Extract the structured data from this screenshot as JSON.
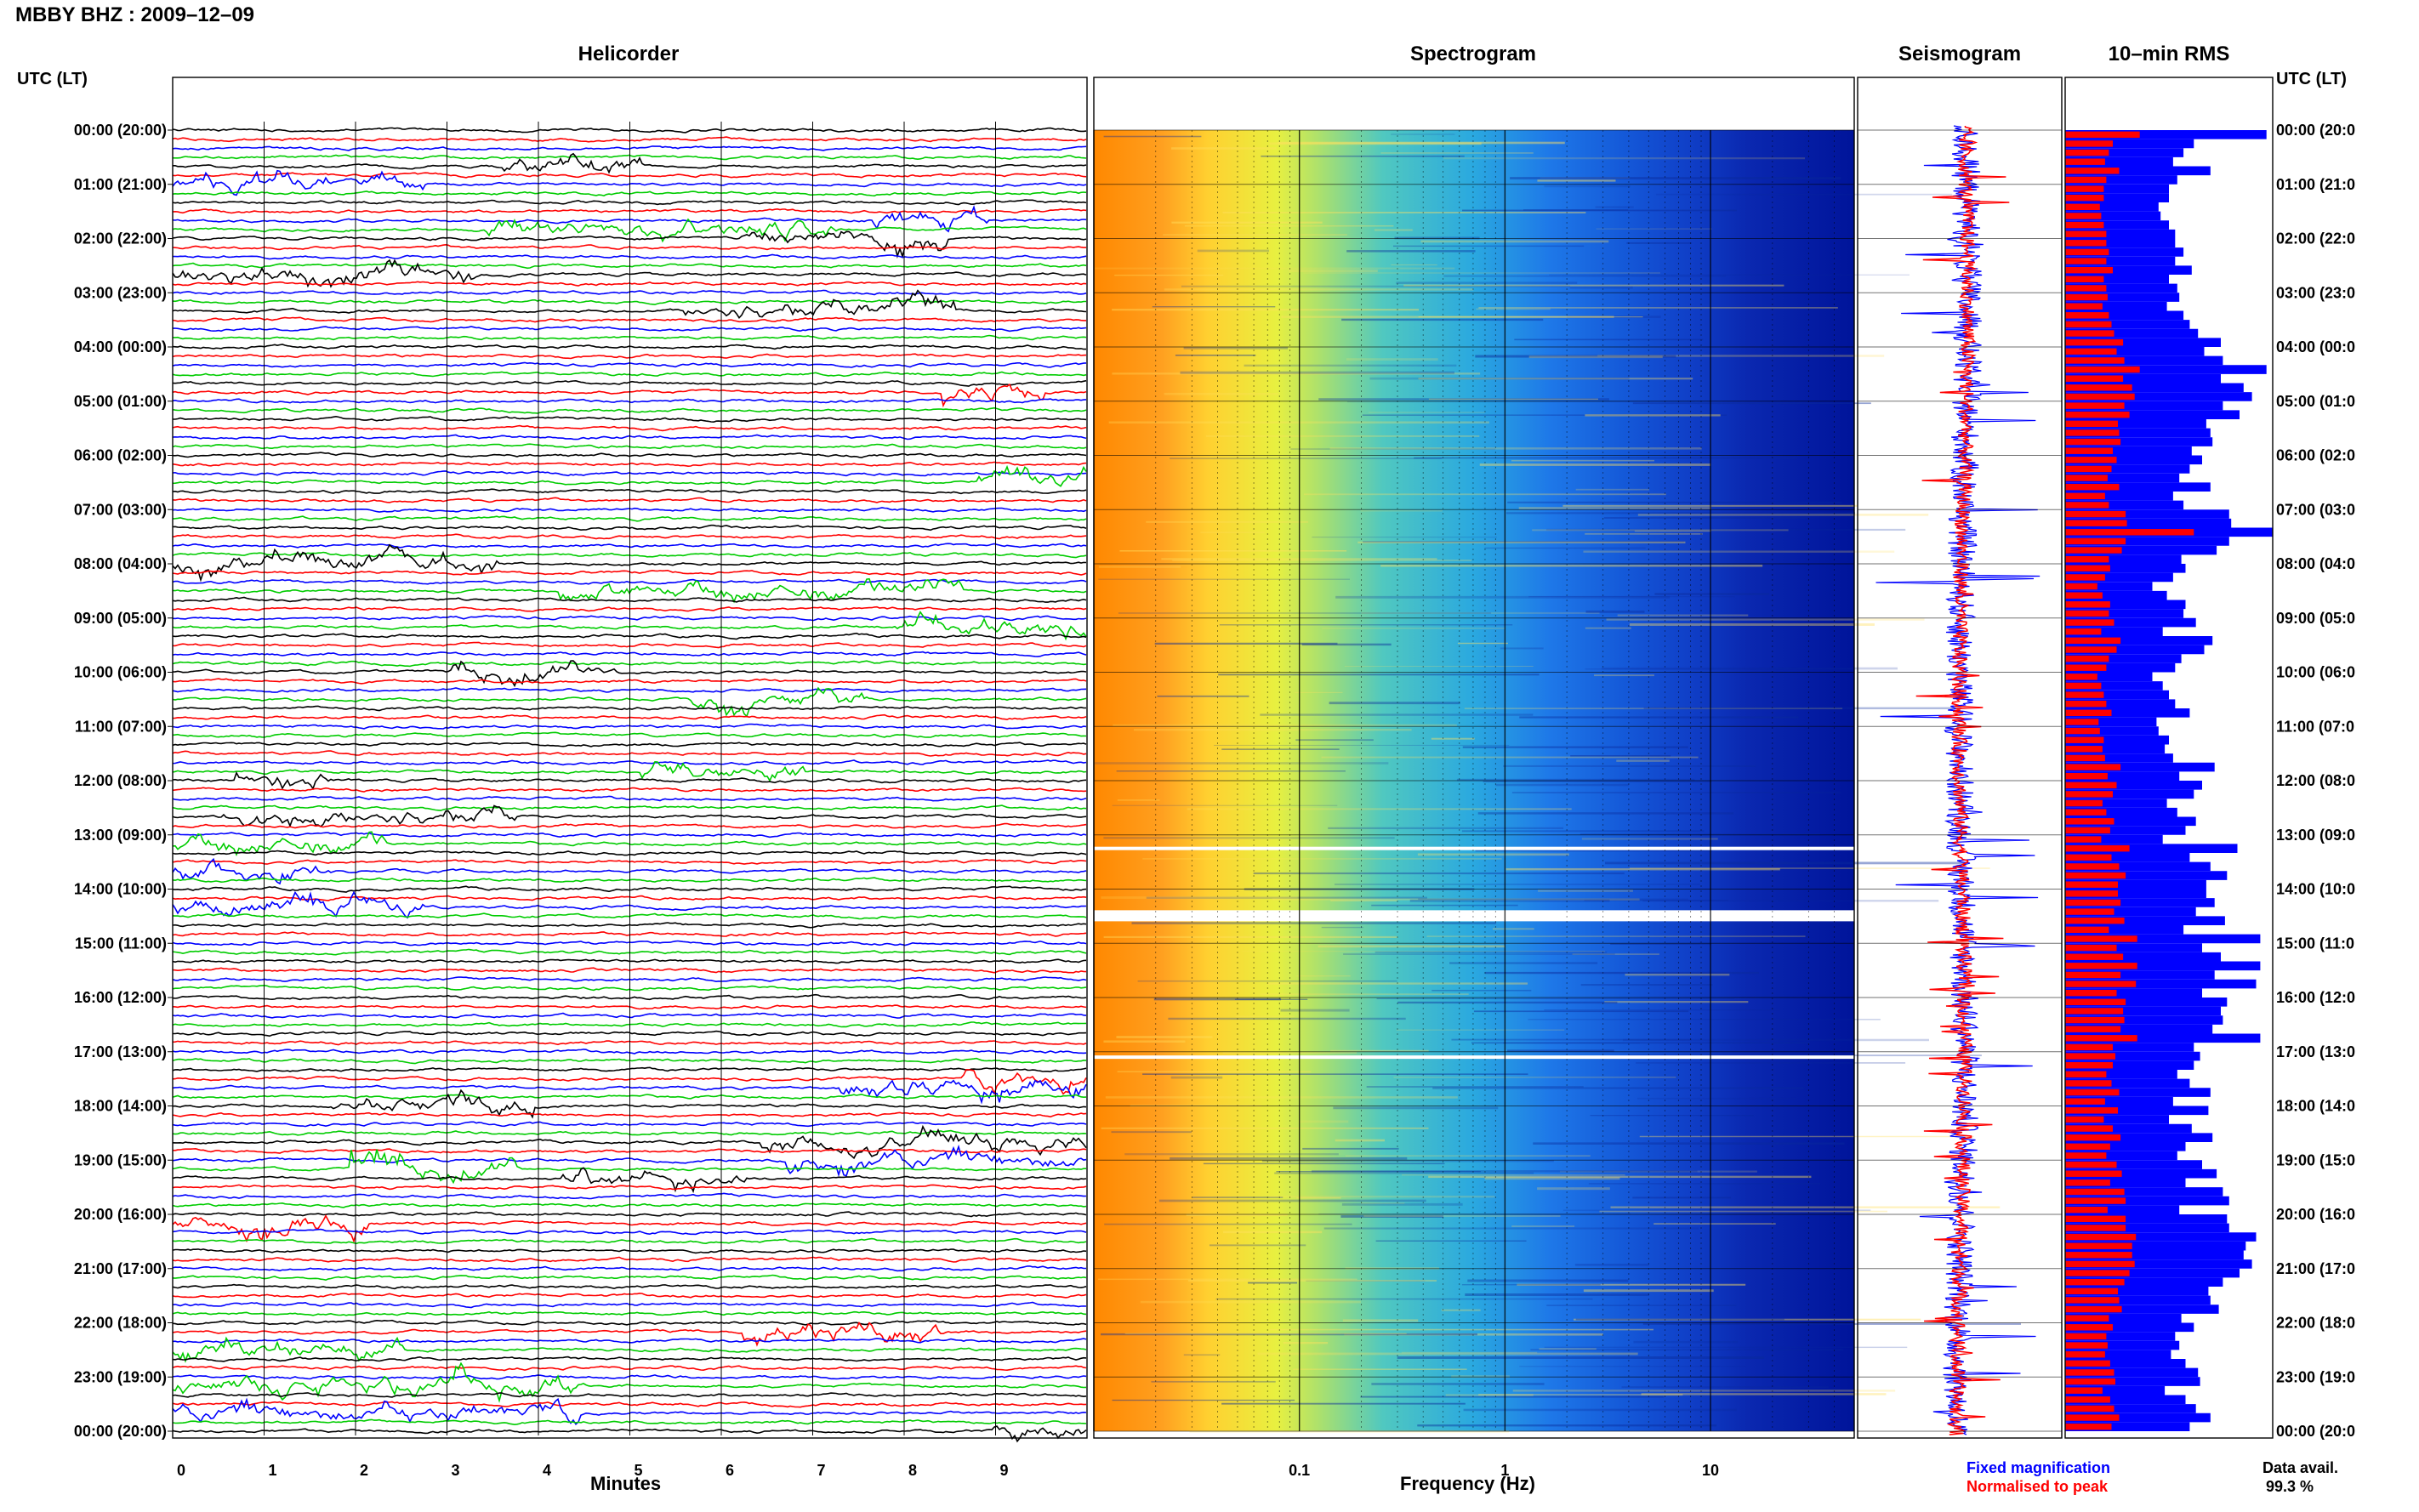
{
  "header": {
    "title": "MBBY BHZ : 2009–12–09",
    "utc_label_left": "UTC (LT)",
    "utc_label_right": "UTC (LT)"
  },
  "panels": {
    "helicorder": "Helicorder",
    "spectrogram": "Spectrogram",
    "seismogram": "Seismogram",
    "rms": "10–min RMS"
  },
  "axes": {
    "minutes_label": "Minutes",
    "frequency_label": "Frequency (Hz)",
    "minute_ticks": [
      "0",
      "1",
      "2",
      "3",
      "4",
      "5",
      "6",
      "7",
      "8",
      "9"
    ],
    "frequency_ticks": [
      "0.1",
      "1",
      "10"
    ]
  },
  "legend": {
    "fixed": "Fixed magnification",
    "normalised": "Normalised to peak",
    "data_avail_label": "Data avail.",
    "data_avail_value": "99.3 %"
  },
  "colors": {
    "trace_cycle": [
      "#000000",
      "#ff0000",
      "#0000ff",
      "#00cc00"
    ],
    "fixed": "#0000ff",
    "normalised": "#ff0000",
    "spectrogram_low": "#ff8c00",
    "spectrogram_mid": "#32c8c8",
    "spectrogram_high": "#0000a0"
  },
  "chart_data": {
    "type": "heatmap",
    "time_labels": [
      "00:00 (20:00)",
      "01:00 (21:00)",
      "02:00 (22:00)",
      "03:00 (23:00)",
      "04:00 (00:00)",
      "05:00 (01:00)",
      "06:00 (02:00)",
      "07:00 (03:00)",
      "08:00 (04:00)",
      "09:00 (05:00)",
      "10:00 (06:00)",
      "11:00 (07:00)",
      "12:00 (08:00)",
      "13:00 (09:00)",
      "14:00 (10:00)",
      "15:00 (11:00)",
      "16:00 (12:00)",
      "17:00 (13:00)",
      "18:00 (14:00)",
      "19:00 (15:00)",
      "20:00 (16:00)",
      "21:00 (17:00)",
      "22:00 (18:00)",
      "23:00 (19:00)",
      "00:00 (20:00)"
    ],
    "time_labels_right": [
      "00:00 (20:0",
      "01:00 (21:0",
      "02:00 (22:0",
      "03:00 (23:0",
      "04:00 (00:0",
      "05:00 (01:0",
      "06:00 (02:0",
      "07:00 (03:0",
      "08:00 (04:0",
      "09:00 (05:0",
      "10:00 (06:0",
      "11:00 (07:0",
      "12:00 (08:0",
      "13:00 (09:0",
      "14:00 (10:0",
      "15:00 (11:0",
      "16:00 (12:0",
      "17:00 (13:0",
      "18:00 (14:0",
      "19:00 (15:0",
      "20:00 (16:0",
      "21:00 (17:0",
      "22:00 (18:0",
      "23:00 (19:0",
      "00:00 (20:0"
    ],
    "helicorder_lines_per_hour": 6,
    "helicorder_minutes_per_line": 10,
    "frequency_range_hz": [
      0.01,
      50
    ],
    "rms_fixed": [
      0.97,
      0.62,
      0.57,
      0.52,
      0.7,
      0.54,
      0.5,
      0.5,
      0.45,
      0.46,
      0.5,
      0.53,
      0.53,
      0.57,
      0.53,
      0.61,
      0.5,
      0.54,
      0.55,
      0.49,
      0.57,
      0.6,
      0.64,
      0.75,
      0.67,
      0.76,
      0.97,
      0.75,
      0.86,
      0.9,
      0.76,
      0.84,
      0.68,
      0.7,
      0.71,
      0.61,
      0.66,
      0.6,
      0.55,
      0.7,
      0.52,
      0.57,
      0.79,
      0.8,
      1.0,
      0.79,
      0.73,
      0.56,
      0.58,
      0.52,
      0.42,
      0.49,
      0.58,
      0.57,
      0.63,
      0.47,
      0.71,
      0.67,
      0.56,
      0.53,
      0.42,
      0.47,
      0.5,
      0.53,
      0.6,
      0.44,
      0.45,
      0.5,
      0.48,
      0.52,
      0.72,
      0.55,
      0.66,
      0.62,
      0.49,
      0.54,
      0.63,
      0.58,
      0.47,
      0.83,
      0.6,
      0.7,
      0.78,
      0.68,
      0.68,
      0.72,
      0.63,
      0.77,
      0.57,
      0.94,
      0.66,
      0.75,
      0.94,
      0.72,
      0.92,
      0.66,
      0.78,
      0.75,
      0.76,
      0.71,
      0.94,
      0.62,
      0.65,
      0.62,
      0.54,
      0.6,
      0.7,
      0.52,
      0.69,
      0.5,
      0.61,
      0.71,
      0.58,
      0.54,
      0.66,
      0.73,
      0.58,
      0.76,
      0.79,
      0.55,
      0.78,
      0.79,
      0.92,
      0.87,
      0.86,
      0.9,
      0.84,
      0.76,
      0.69,
      0.7,
      0.74,
      0.56,
      0.62,
      0.53,
      0.55,
      0.51,
      0.58,
      0.64,
      0.65,
      0.48,
      0.58,
      0.63,
      0.7,
      0.6
    ],
    "rms_normalised": [
      0.58,
      0.37,
      0.34,
      0.31,
      0.42,
      0.32,
      0.3,
      0.3,
      0.27,
      0.28,
      0.3,
      0.32,
      0.32,
      0.34,
      0.32,
      0.37,
      0.3,
      0.32,
      0.33,
      0.29,
      0.34,
      0.36,
      0.38,
      0.45,
      0.4,
      0.46,
      0.58,
      0.45,
      0.52,
      0.54,
      0.46,
      0.5,
      0.41,
      0.42,
      0.43,
      0.37,
      0.4,
      0.36,
      0.33,
      0.42,
      0.31,
      0.34,
      0.47,
      0.48,
      1.0,
      0.47,
      0.44,
      0.34,
      0.35,
      0.31,
      0.25,
      0.29,
      0.35,
      0.34,
      0.38,
      0.28,
      0.43,
      0.4,
      0.34,
      0.32,
      0.25,
      0.28,
      0.3,
      0.32,
      0.36,
      0.26,
      0.27,
      0.3,
      0.29,
      0.31,
      0.43,
      0.33,
      0.4,
      0.37,
      0.29,
      0.32,
      0.38,
      0.35,
      0.28,
      0.5,
      0.36,
      0.42,
      0.47,
      0.41,
      0.41,
      0.43,
      0.38,
      0.46,
      0.34,
      0.56,
      0.4,
      0.45,
      0.56,
      0.43,
      0.55,
      0.4,
      0.47,
      0.45,
      0.46,
      0.43,
      0.56,
      0.37,
      0.39,
      0.37,
      0.32,
      0.36,
      0.42,
      0.31,
      0.41,
      0.3,
      0.37,
      0.43,
      0.35,
      0.32,
      0.4,
      0.44,
      0.35,
      0.46,
      0.47,
      0.33,
      0.47,
      0.47,
      0.55,
      0.52,
      0.52,
      0.54,
      0.5,
      0.46,
      0.41,
      0.42,
      0.44,
      0.34,
      0.37,
      0.32,
      0.33,
      0.31,
      0.35,
      0.38,
      0.39,
      0.29,
      0.35,
      0.38,
      0.42,
      0.36
    ],
    "data_gaps_hours": [
      13.25,
      14.5,
      17.1
    ]
  }
}
